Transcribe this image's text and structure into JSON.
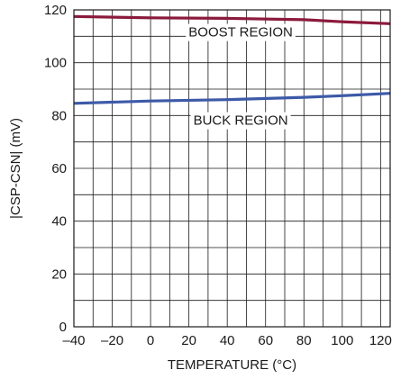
{
  "chart_data": {
    "type": "line",
    "xlabel": "TEMPERATURE (°C)",
    "ylabel": "|CSP-CSN| (mV)",
    "xlim": [
      -40,
      125
    ],
    "ylim": [
      0,
      120
    ],
    "x_ticks": [
      -40,
      -20,
      0,
      20,
      40,
      60,
      80,
      100,
      120
    ],
    "x_tick_labels": [
      "–40",
      "–20",
      "0",
      "20",
      "40",
      "60",
      "80",
      "100",
      "120"
    ],
    "y_ticks": [
      0,
      20,
      40,
      60,
      80,
      100,
      120
    ],
    "grid": true,
    "series": [
      {
        "label_on_chart": "BOOST REGION",
        "color": "#8b1a3c",
        "x": [
          -40,
          0,
          40,
          80,
          100,
          125
        ],
        "y": [
          117.5,
          117.0,
          116.8,
          116.3,
          115.5,
          114.8
        ]
      },
      {
        "label_on_chart": "BUCK REGION",
        "color": "#3d5aa8",
        "x": [
          -40,
          0,
          40,
          80,
          100,
          125
        ],
        "y": [
          84.6,
          85.5,
          86.0,
          86.9,
          87.5,
          88.4
        ]
      }
    ]
  }
}
